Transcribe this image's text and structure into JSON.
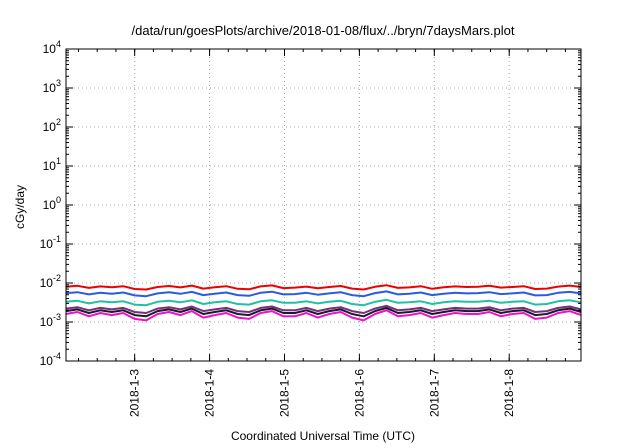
{
  "chart_data": {
    "type": "line",
    "title": "/data/run/goesPlots/archive/2018-01-08/flux/../bryn/7daysMars.plot",
    "xlabel": "Coordinated Universal Time (UTC)",
    "ylabel": "cGy/day",
    "yscale": "log",
    "ylim": [
      0.0001,
      10000
    ],
    "y_ticks": [
      {
        "value": 0.0001,
        "base": "10",
        "exp": "-4"
      },
      {
        "value": 0.001,
        "base": "10",
        "exp": "-3"
      },
      {
        "value": 0.01,
        "base": "10",
        "exp": "-2"
      },
      {
        "value": 0.1,
        "base": "10",
        "exp": "-1"
      },
      {
        "value": 1,
        "base": "10",
        "exp": "0"
      },
      {
        "value": 10,
        "base": "10",
        "exp": "1"
      },
      {
        "value": 100,
        "base": "10",
        "exp": "2"
      },
      {
        "value": 1000,
        "base": "10",
        "exp": "3"
      },
      {
        "value": 10000,
        "base": "10",
        "exp": "4"
      }
    ],
    "xlim": [
      "2018-01-02T02:00",
      "2018-01-08T23:00"
    ],
    "x_ticks": [
      "2018-1-3",
      "2018-1-4",
      "2018-1-5",
      "2018-1-6",
      "2018-1-7",
      "2018-1-8"
    ],
    "grid": true,
    "legend": "none",
    "series": [
      {
        "color": "#ee0000",
        "values": [
          0.008,
          0.0085,
          0.0075,
          0.0082,
          0.0078,
          0.0083,
          0.007,
          0.0068,
          0.0079,
          0.0084,
          0.0077,
          0.0086,
          0.0072,
          0.0078,
          0.0083,
          0.0071,
          0.0069,
          0.0082,
          0.0087,
          0.0074,
          0.0076,
          0.0081,
          0.0073,
          0.0079,
          0.0084,
          0.0072,
          0.0068,
          0.008,
          0.0088,
          0.0075,
          0.0077,
          0.0083,
          0.0071,
          0.0078,
          0.0082,
          0.0079,
          0.008,
          0.0085,
          0.0076,
          0.0079,
          0.0083,
          0.007,
          0.0072,
          0.0081,
          0.0086,
          0.0079
        ]
      },
      {
        "color": "#2a5ce0",
        "values": [
          0.0055,
          0.0058,
          0.0051,
          0.0056,
          0.0053,
          0.0057,
          0.0048,
          0.0046,
          0.0054,
          0.0058,
          0.0053,
          0.0059,
          0.0049,
          0.0053,
          0.0057,
          0.0049,
          0.0047,
          0.0056,
          0.006,
          0.0051,
          0.0052,
          0.0056,
          0.005,
          0.0054,
          0.0058,
          0.0049,
          0.0046,
          0.0055,
          0.0061,
          0.0051,
          0.0053,
          0.0057,
          0.0049,
          0.0053,
          0.0056,
          0.0054,
          0.0055,
          0.0058,
          0.0052,
          0.0054,
          0.0057,
          0.0048,
          0.0049,
          0.0056,
          0.0059,
          0.0054
        ]
      },
      {
        "color": "#20c0a0",
        "values": [
          0.0033,
          0.0035,
          0.003,
          0.0034,
          0.0032,
          0.0034,
          0.0028,
          0.0027,
          0.0033,
          0.0035,
          0.0032,
          0.0036,
          0.0029,
          0.0032,
          0.0034,
          0.0029,
          0.0028,
          0.0034,
          0.0036,
          0.0031,
          0.0031,
          0.0034,
          0.003,
          0.0033,
          0.0035,
          0.0029,
          0.0027,
          0.0033,
          0.0037,
          0.0031,
          0.0032,
          0.0034,
          0.0029,
          0.0032,
          0.0034,
          0.0033,
          0.0033,
          0.0035,
          0.0031,
          0.0033,
          0.0034,
          0.0028,
          0.0029,
          0.0034,
          0.0036,
          0.0032
        ]
      },
      {
        "color": "#7a2e7a",
        "values": [
          0.0022,
          0.0024,
          0.002,
          0.0023,
          0.0021,
          0.0023,
          0.0018,
          0.0017,
          0.0022,
          0.0024,
          0.0021,
          0.0025,
          0.0019,
          0.0021,
          0.0023,
          0.0019,
          0.0018,
          0.0023,
          0.0025,
          0.002,
          0.002,
          0.0023,
          0.0019,
          0.0022,
          0.0024,
          0.0019,
          0.0017,
          0.0022,
          0.0026,
          0.002,
          0.0021,
          0.0023,
          0.0019,
          0.0021,
          0.0023,
          0.0022,
          0.0022,
          0.0024,
          0.002,
          0.0022,
          0.0023,
          0.0018,
          0.0019,
          0.0023,
          0.0025,
          0.0021
        ]
      },
      {
        "color": "#1a1a2e",
        "values": [
          0.0019,
          0.0021,
          0.0017,
          0.002,
          0.0018,
          0.002,
          0.0015,
          0.0014,
          0.0019,
          0.0021,
          0.0018,
          0.0022,
          0.0016,
          0.0018,
          0.002,
          0.0016,
          0.0015,
          0.002,
          0.0022,
          0.0017,
          0.0017,
          0.002,
          0.0016,
          0.0019,
          0.0021,
          0.0016,
          0.0014,
          0.0019,
          0.0023,
          0.0017,
          0.0018,
          0.002,
          0.0016,
          0.0018,
          0.002,
          0.0019,
          0.0019,
          0.0021,
          0.0017,
          0.0019,
          0.002,
          0.0015,
          0.0016,
          0.002,
          0.0022,
          0.0018
        ]
      },
      {
        "color": "#f010c8",
        "values": [
          0.0016,
          0.0018,
          0.0014,
          0.0017,
          0.0015,
          0.0017,
          0.0012,
          0.0011,
          0.0016,
          0.0018,
          0.0015,
          0.0019,
          0.0013,
          0.0015,
          0.0017,
          0.0013,
          0.0012,
          0.0017,
          0.0019,
          0.0014,
          0.0014,
          0.0017,
          0.0013,
          0.0016,
          0.0018,
          0.0013,
          0.0011,
          0.0016,
          0.002,
          0.0014,
          0.0015,
          0.0017,
          0.0013,
          0.0015,
          0.0017,
          0.0016,
          0.0016,
          0.0018,
          0.0014,
          0.0016,
          0.0017,
          0.0012,
          0.0013,
          0.0017,
          0.0019,
          0.0015
        ]
      }
    ]
  }
}
